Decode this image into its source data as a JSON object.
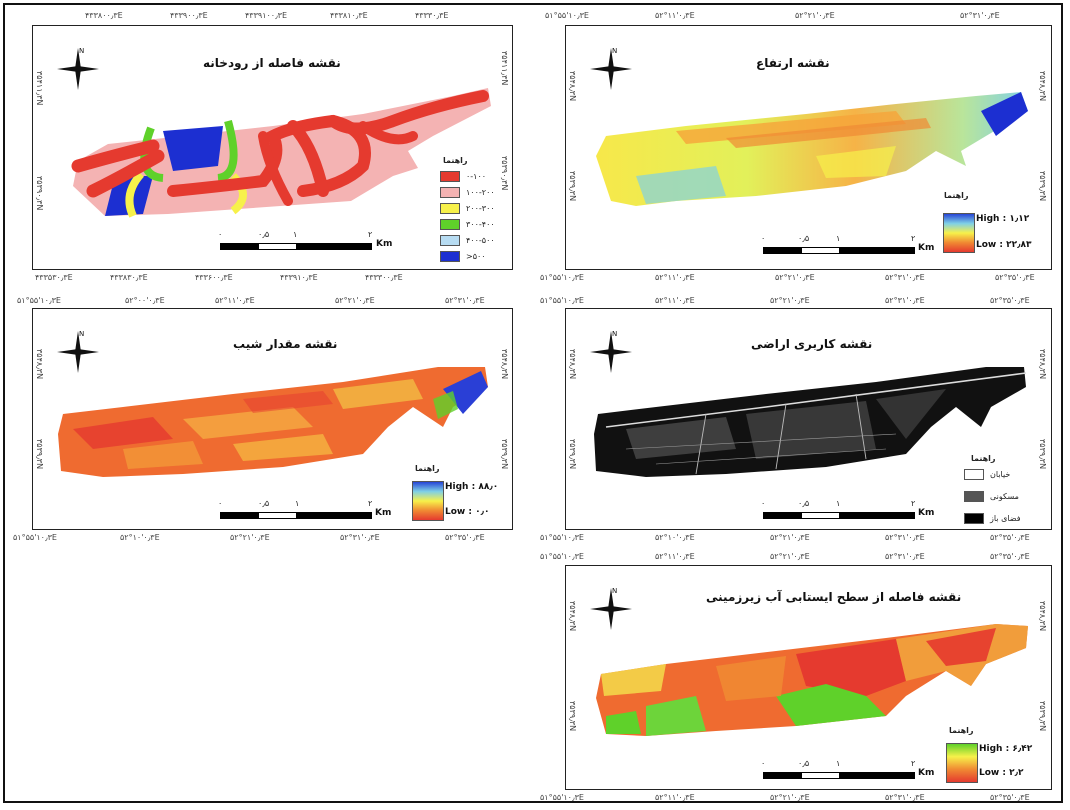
{
  "maps": {
    "river": {
      "title": "نقشه فاصله از رودخانه",
      "legend_title": "راهنما",
      "legend": [
        {
          "label": "۰-۱۰۰",
          "color": "#e53a2f"
        },
        {
          "label": "۱۰۰-۲۰۰",
          "color": "#f4b3b3"
        },
        {
          "label": "۲۰۰-۳۰۰",
          "color": "#f7f14a"
        },
        {
          "label": "۳۰۰-۴۰۰",
          "color": "#5fd12a"
        },
        {
          "label": "۴۰۰-۵۰۰",
          "color": "#b7dcf2"
        },
        {
          "label": ">۵۰۰",
          "color": "#1c2fd1"
        }
      ],
      "coords_top": [
        "۴۳۳۸۰۰٫۳E",
        "۴۳۳۹۰۰٫۳E",
        "۴۳۳۹۱۰۰٫۳E",
        "۴۳۳۸۱۰٫۳E",
        "۴۳۳۳۰٫۳E"
      ],
      "coords_bottom": [
        "۴۳۳۵۳۰٫۳E",
        "۴۳۳۸۳۰٫۳E",
        "۴۳۳۶۰۰٫۳E",
        "۴۳۳۹۱۰٫۳E",
        "۴۳۳۳۰۰٫۳E"
      ],
      "coords_left": [
        "۳۵۴۱۱٫۳N",
        "۳۵۳۹۰٫۳N"
      ],
      "coords_right": [
        "۳۵۴۱۱٫۳N",
        "۳۵۳۹۰٫۳N"
      ],
      "scale": [
        "۰",
        "۰٫۵",
        "۱",
        "۲"
      ],
      "unit": "Km"
    },
    "elevation": {
      "title": "نقشه ارتفاع",
      "legend_title": "راهنما",
      "high": "High : ۱٫۱۲",
      "low": "Low : ۲۲٫۸۳",
      "coords_top": [
        "۵۱°۵۵'۱۰٫۳E",
        "۵۲°۱۱'۰٫۳E",
        "۵۲°۲۱'۰٫۳E",
        "۵۲°۳۱'۰٫۳E"
      ],
      "coords_bottom": [
        "۵۱°۵۵'۱۰٫۳E",
        "۵۲°۱۱'۰٫۳E",
        "۵۲°۲۱'۰٫۳E",
        "۵۲°۳۱'۰٫۳E",
        "۵۲°۳۵'۰٫۳E"
      ],
      "coords_left": [
        "۳۵۴۸٫۳N",
        "۳۵۳۹٫۳N"
      ],
      "coords_right": [
        "۳۵۴۸٫۳N",
        "۳۵۳۹٫۳N"
      ],
      "scale": [
        "۰",
        "۰٫۵",
        "۱",
        "۲"
      ],
      "unit": "Km"
    },
    "slope": {
      "title": "نقشه مقدار شیب",
      "legend_title": "راهنما",
      "high": "High : ۸۸٫۰",
      "low": "Low : ۰٫۰",
      "coords_top": [
        "۵۱°۵۵'۱۰٫۳E",
        "۵۲°۰۰'۰٫۳E",
        "۵۲°۱۱'۰٫۳E",
        "۵۲°۲۱'۰٫۳E",
        "۵۲°۳۱'۰٫۳E"
      ],
      "coords_bottom": [
        "۵۱°۵۵'۱۰٫۳E",
        "۵۲°۱۰'۰٫۳E",
        "۵۲°۲۱'۰٫۳E",
        "۵۲°۳۱'۰٫۳E",
        "۵۲°۳۵'۰٫۳E"
      ],
      "coords_left": [
        "۳۵۴۸٫۳N",
        "۳۵۳۹٫۳N"
      ],
      "coords_right": [
        "۳۵۴۸٫۳N",
        "۳۵۳۹٫۳N"
      ],
      "scale": [
        "۰",
        "۰٫۵",
        "۱",
        "۲"
      ],
      "unit": "Km"
    },
    "landuse": {
      "title": "نقشه کاربری اراضی",
      "legend_title": "راهنما",
      "legend": [
        {
          "label": "خیابان",
          "color": "#ffffff"
        },
        {
          "label": "مسکونی",
          "color": "#555555"
        },
        {
          "label": "فضای باز",
          "color": "#000000"
        }
      ],
      "coords_top": [
        "۵۱°۵۵'۱۰٫۳E",
        "۵۲°۱۱'۰٫۳E",
        "۵۲°۲۱'۰٫۳E",
        "۵۲°۳۱'۰٫۳E",
        "۵۲°۳۵'۰٫۳E"
      ],
      "coords_bottom": [
        "۵۱°۵۵'۱۰٫۳E",
        "۵۲°۱۰'۰٫۳E",
        "۵۲°۲۱'۰٫۳E",
        "۵۲°۳۱'۰٫۳E",
        "۵۲°۳۵'۰٫۳E"
      ],
      "coords_left": [
        "۳۵۴۸٫۳N",
        "۳۵۳۹٫۳N"
      ],
      "coords_right": [
        "۳۵۴۸٫۳N",
        "۳۵۳۹٫۳N"
      ],
      "scale": [
        "۰",
        "۰٫۵",
        "۱",
        "۲"
      ],
      "unit": "Km"
    },
    "groundwater": {
      "title": "نقشه فاصله از سطح ایستابی آب زیرزمینی",
      "legend_title": "راهنما",
      "high": "High : ۶٫۴۲",
      "low": "Low : ۲٫۲",
      "coords_top": [
        "۵۱°۵۵'۱۰٫۳E",
        "۵۲°۱۱'۰٫۳E",
        "۵۲°۲۱'۰٫۳E",
        "۵۲°۳۱'۰٫۳E",
        "۵۲°۳۵'۰٫۳E"
      ],
      "coords_bottom": [
        "۵۱°۵۵'۱۰٫۳E",
        "۵۲°۱۱'۰٫۳E",
        "۵۲°۲۱'۰٫۳E",
        "۵۲°۳۱'۰٫۳E",
        "۵۲°۳۵'۰٫۳E"
      ],
      "coords_left": [
        "۳۵۴۸٫۳N",
        "۳۵۳۹٫۳N"
      ],
      "coords_right": [
        "۳۵۴۸٫۳N",
        "۳۵۳۹٫۳N"
      ],
      "scale": [
        "۰",
        "۰٫۵",
        "۱",
        "۲"
      ],
      "unit": "Km"
    }
  }
}
